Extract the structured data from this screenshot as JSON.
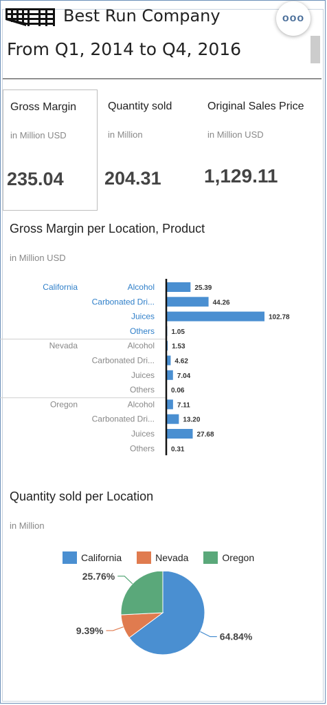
{
  "header": {
    "company": "Best Run Company",
    "period": "From Q1, 2014 to Q4, 2016",
    "more_icon": "ooo"
  },
  "kpis": [
    {
      "title": "Gross Margin",
      "subtitle": "in Million USD",
      "value": "235.04",
      "selected": true
    },
    {
      "title": "Quantity sold",
      "subtitle": "in Million",
      "value": "204.31",
      "selected": false
    },
    {
      "title": "Original Sales Price",
      "subtitle": "in Million USD",
      "value": "1,129.11",
      "selected": false
    }
  ],
  "bar_section": {
    "title": "Gross Margin per Location, Product",
    "subtitle": "in Million USD"
  },
  "pie_section": {
    "title": "Quantity sold per Location",
    "subtitle": "in Million"
  },
  "colors": {
    "bar": "#4a8fd1",
    "california": "#4a8fd1",
    "nevada": "#e07b4f",
    "oregon": "#5aa87a",
    "link": "#2f7fc9",
    "muted": "#888888"
  },
  "chart_data": [
    {
      "type": "bar",
      "orientation": "horizontal",
      "title": "Gross Margin per Location, Product",
      "subtitle": "in Million USD",
      "groups": [
        {
          "location": "California",
          "highlighted": true,
          "rows": [
            {
              "product": "Alcohol",
              "value": 25.39,
              "label": "25.39"
            },
            {
              "product": "Carbonated Dri...",
              "value": 44.26,
              "label": "44.26"
            },
            {
              "product": "Juices",
              "value": 102.78,
              "label": "102.78"
            },
            {
              "product": "Others",
              "value": 1.05,
              "label": "1.05"
            }
          ]
        },
        {
          "location": "Nevada",
          "highlighted": false,
          "rows": [
            {
              "product": "Alcohol",
              "value": 1.53,
              "label": "1.53"
            },
            {
              "product": "Carbonated Dri...",
              "value": 4.62,
              "label": "4.62"
            },
            {
              "product": "Juices",
              "value": 7.04,
              "label": "7.04"
            },
            {
              "product": "Others",
              "value": 0.06,
              "label": "0.06"
            }
          ]
        },
        {
          "location": "Oregon",
          "highlighted": false,
          "rows": [
            {
              "product": "Alcohol",
              "value": 7.11,
              "label": "7.11"
            },
            {
              "product": "Carbonated Dri...",
              "value": 13.2,
              "label": "13.20"
            },
            {
              "product": "Juices",
              "value": 27.68,
              "label": "27.68"
            },
            {
              "product": "Others",
              "value": 0.31,
              "label": "0.31"
            }
          ]
        }
      ],
      "xlim": [
        0,
        102.78
      ]
    },
    {
      "type": "pie",
      "title": "Quantity sold per Location",
      "subtitle": "in Million",
      "legend": [
        "California",
        "Nevada",
        "Oregon"
      ],
      "legend_position": "top",
      "slices": [
        {
          "name": "California",
          "percent": 64.84,
          "label": "64.84%"
        },
        {
          "name": "Nevada",
          "percent": 9.39,
          "label": "9.39%"
        },
        {
          "name": "Oregon",
          "percent": 25.76,
          "label": "25.76%"
        }
      ]
    }
  ]
}
